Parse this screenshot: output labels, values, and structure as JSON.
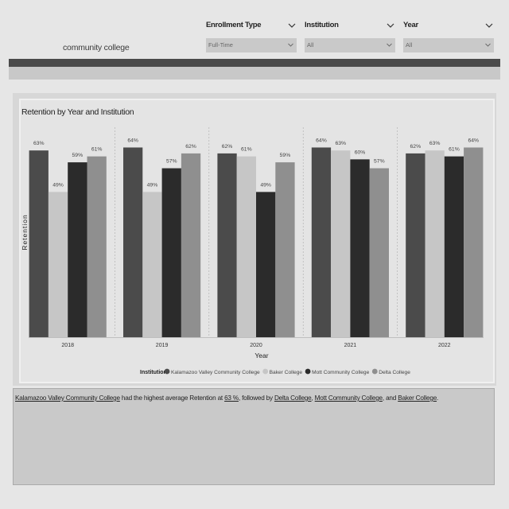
{
  "header": {
    "logo_text": "community college"
  },
  "slicers": [
    {
      "label": "Enrollment Type",
      "value": "Full-Time"
    },
    {
      "label": "Institution",
      "value": "All"
    },
    {
      "label": "Year",
      "value": "All"
    }
  ],
  "chart_title": "Retention by Year and Institution",
  "chart_data": {
    "type": "bar",
    "title": "Retention by Year and Institution",
    "xlabel": "Year",
    "ylabel": "Retention",
    "categories": [
      "2018",
      "2019",
      "2020",
      "2021",
      "2022"
    ],
    "ylim": [
      0,
      66
    ],
    "grid": false,
    "legend_title": "Institution",
    "legend_position": "bottom",
    "series": [
      {
        "name": "Kalamazoo Valley Community College",
        "values": [
          63,
          64,
          62,
          64,
          62
        ],
        "labels": [
          "63%",
          "64%",
          "62%",
          "64%",
          "62%"
        ],
        "color": "#4b4b4b"
      },
      {
        "name": "Baker College",
        "values": [
          49,
          49,
          61,
          63,
          63
        ],
        "labels": [
          "49%",
          "49%",
          "61%",
          "63%",
          "63%"
        ],
        "color": "#c6c6c6"
      },
      {
        "name": "Mott Community College",
        "values": [
          59,
          57,
          49,
          60,
          61
        ],
        "labels": [
          "59%",
          "57%",
          "49%",
          "60%",
          "61%"
        ],
        "color": "#2b2b2b"
      },
      {
        "name": "Delta College",
        "values": [
          61,
          62,
          59,
          57,
          64
        ],
        "labels": [
          "61%",
          "62%",
          "59%",
          "57%",
          "64%"
        ],
        "color": "#8f8f8f"
      }
    ]
  },
  "insight": {
    "t1": "Kalamazoo Valley Community College",
    "t2": " had the highest average Retention at ",
    "t3": "63 %",
    "t4": ", followed by ",
    "t5": "Delta College",
    "t6": ", ",
    "t7": "Mott Community College",
    "t8": ", and ",
    "t9": "Baker College",
    "t10": "."
  }
}
